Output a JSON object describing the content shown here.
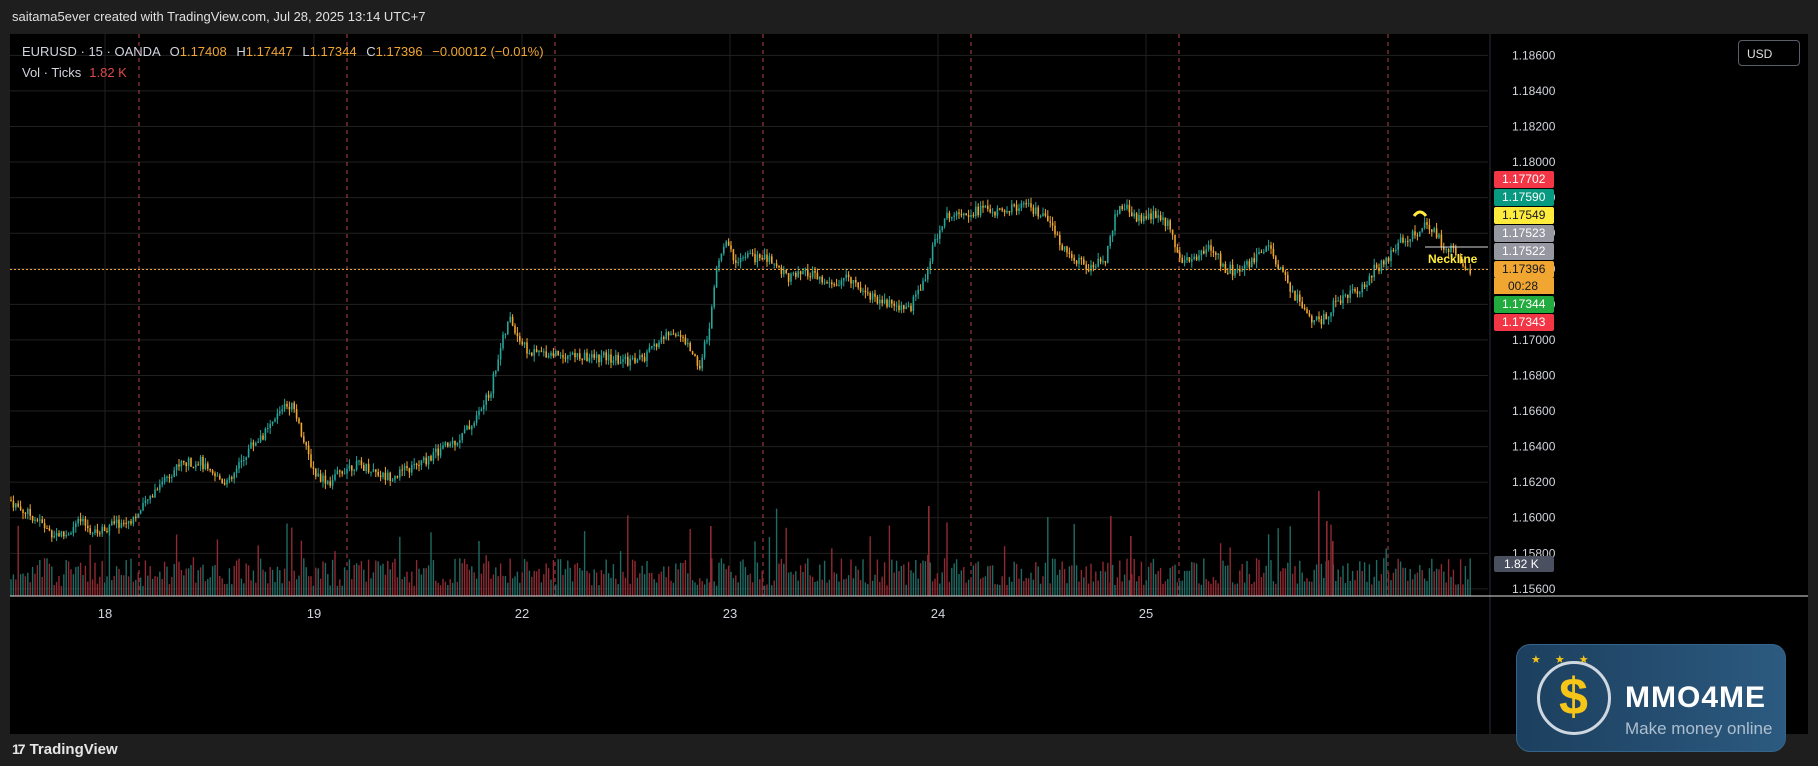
{
  "header": {
    "attribution": "saitama5ever created with TradingView.com, Jul 28, 2025 13:14 UTC+7"
  },
  "legend": {
    "symbol": "EURUSD · 15 · OANDA",
    "open_label": "O",
    "open": "1.17408",
    "high_label": "H",
    "high": "1.17447",
    "low_label": "L",
    "low": "1.17344",
    "close_label": "C",
    "close": "1.17396",
    "change": "−0.00012 (−0.01%)",
    "volume_label": "Vol · Ticks",
    "volume": "1.82 K"
  },
  "currency_button": "USD",
  "footer": {
    "brand": "TradingView"
  },
  "watermark": {
    "name": "MMO4ME",
    "tagline": "Make money online"
  },
  "annotation": {
    "label": "Neckline"
  },
  "colors": {
    "up": "#26a69a",
    "down": "#f0a630",
    "price_line": "#f0a630",
    "day_divider": "#e0525a",
    "grid": "#202020"
  },
  "chart_data": {
    "type": "candlestick",
    "symbol": "EURUSD",
    "interval": "15",
    "ylim": [
      1.1556,
      1.1872
    ],
    "y_ticks": [
      "1.18600",
      "1.18400",
      "1.18200",
      "1.18000",
      "1.17800",
      "1.17600",
      "1.17400",
      "1.17200",
      "1.17000",
      "1.16800",
      "1.16600",
      "1.16400",
      "1.16200",
      "1.16000",
      "1.15800",
      "1.15600"
    ],
    "x_tick_labels": [
      "18",
      "19",
      "22",
      "23",
      "24",
      "25"
    ],
    "current_price": 1.17396,
    "countdown": "00:28",
    "price_badges": [
      {
        "label": "1.17702",
        "value": 1.17702,
        "color": "#f23645"
      },
      {
        "label": "1.17590",
        "value": 1.1759,
        "color": "#089981"
      },
      {
        "label": "1.17549",
        "value": 1.17549,
        "color": "#ffeb3b"
      },
      {
        "label": "1.17523",
        "value": 1.17523,
        "color": "#9598a1"
      },
      {
        "label": "1.17522",
        "value": 1.17522,
        "color": "#9598a1"
      },
      {
        "label": "1.17396",
        "value": 1.17396,
        "color": "#f0a630"
      },
      {
        "label": "1.17344",
        "value": 1.17344,
        "color": "#22ab3e"
      },
      {
        "label": "1.17343",
        "value": 1.17343,
        "color": "#f23645"
      }
    ],
    "volume_badge": "1.82 K",
    "price_path": [
      [
        0,
        1.161
      ],
      [
        10,
        1.1605
      ],
      [
        25,
        1.16
      ],
      [
        40,
        1.1592
      ],
      [
        55,
        1.159
      ],
      [
        70,
        1.1598
      ],
      [
        85,
        1.1591
      ],
      [
        100,
        1.1596
      ],
      [
        115,
        1.1597
      ],
      [
        130,
        1.1603
      ],
      [
        150,
        1.162
      ],
      [
        170,
        1.163
      ],
      [
        190,
        1.1632
      ],
      [
        200,
        1.1624
      ],
      [
        220,
        1.162
      ],
      [
        240,
        1.164
      ],
      [
        260,
        1.165
      ],
      [
        275,
        1.1665
      ],
      [
        285,
        1.1662
      ],
      [
        295,
        1.164
      ],
      [
        305,
        1.1625
      ],
      [
        320,
        1.162
      ],
      [
        335,
        1.1628
      ],
      [
        345,
        1.163
      ],
      [
        360,
        1.1628
      ],
      [
        375,
        1.1623
      ],
      [
        390,
        1.1625
      ],
      [
        410,
        1.163
      ],
      [
        430,
        1.1638
      ],
      [
        450,
        1.1645
      ],
      [
        465,
        1.1655
      ],
      [
        480,
        1.167
      ],
      [
        490,
        1.1695
      ],
      [
        500,
        1.1712
      ],
      [
        510,
        1.17
      ],
      [
        520,
        1.1692
      ],
      [
        535,
        1.1693
      ],
      [
        555,
        1.1692
      ],
      [
        575,
        1.169
      ],
      [
        595,
        1.169
      ],
      [
        615,
        1.1688
      ],
      [
        635,
        1.169
      ],
      [
        650,
        1.17
      ],
      [
        665,
        1.1705
      ],
      [
        680,
        1.1695
      ],
      [
        690,
        1.1685
      ],
      [
        700,
        1.171
      ],
      [
        708,
        1.1745
      ],
      [
        715,
        1.1755
      ],
      [
        725,
        1.1745
      ],
      [
        740,
        1.1747
      ],
      [
        760,
        1.1745
      ],
      [
        780,
        1.1735
      ],
      [
        800,
        1.1737
      ],
      [
        820,
        1.173
      ],
      [
        840,
        1.1735
      ],
      [
        860,
        1.1725
      ],
      [
        880,
        1.172
      ],
      [
        900,
        1.1718
      ],
      [
        915,
        1.1735
      ],
      [
        930,
        1.1765
      ],
      [
        945,
        1.1773
      ],
      [
        960,
        1.1772
      ],
      [
        975,
        1.1774
      ],
      [
        990,
        1.1771
      ],
      [
        1005,
        1.1775
      ],
      [
        1020,
        1.1774
      ],
      [
        1035,
        1.1768
      ],
      [
        1050,
        1.1755
      ],
      [
        1065,
        1.1745
      ],
      [
        1080,
        1.174
      ],
      [
        1095,
        1.1745
      ],
      [
        1105,
        1.177
      ],
      [
        1115,
        1.1775
      ],
      [
        1130,
        1.1768
      ],
      [
        1145,
        1.177
      ],
      [
        1160,
        1.1765
      ],
      [
        1170,
        1.1745
      ],
      [
        1185,
        1.1745
      ],
      [
        1200,
        1.1753
      ],
      [
        1215,
        1.174
      ],
      [
        1230,
        1.1738
      ],
      [
        1245,
        1.1745
      ],
      [
        1258,
        1.1752
      ],
      [
        1270,
        1.174
      ],
      [
        1285,
        1.1725
      ],
      [
        1300,
        1.1712
      ],
      [
        1312,
        1.171
      ],
      [
        1325,
        1.1722
      ],
      [
        1340,
        1.1725
      ],
      [
        1355,
        1.1732
      ],
      [
        1365,
        1.174
      ],
      [
        1378,
        1.1745
      ],
      [
        1390,
        1.1755
      ],
      [
        1405,
        1.176
      ],
      [
        1415,
        1.1765
      ],
      [
        1425,
        1.176
      ],
      [
        1435,
        1.1752
      ],
      [
        1445,
        1.175
      ],
      [
        1455,
        1.1742
      ],
      [
        1462,
        1.17396
      ]
    ]
  }
}
